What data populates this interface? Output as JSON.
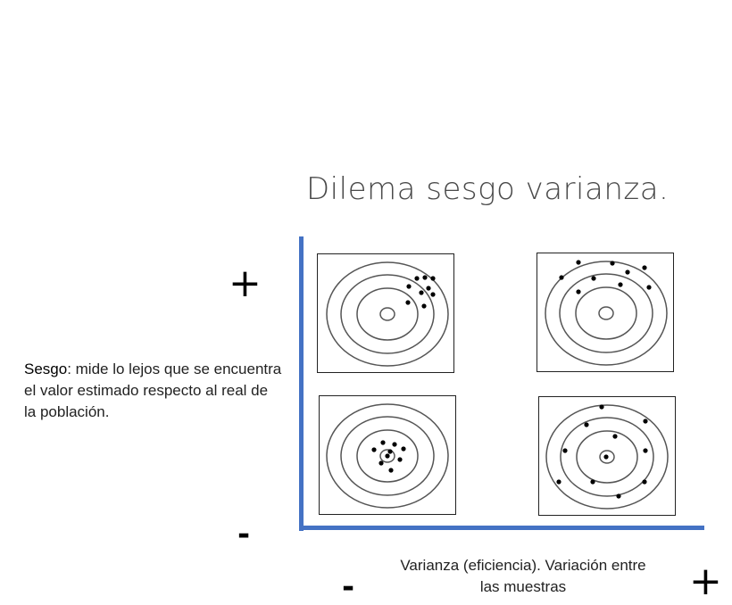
{
  "title": "Dilema sesgo varianza.",
  "description": {
    "term": "Sesgo",
    "text": ": mide lo lejos que se encuentra el valor estimado respecto al real de la población."
  },
  "x_axis_label": "Varianza (eficiencia). Variación entre las muestras",
  "signs": {
    "y_high": "+",
    "y_low": "-",
    "x_low": "-",
    "x_high": "+"
  },
  "colors": {
    "axis": "#4472c4",
    "rings": "#555555",
    "dots": "#000000",
    "title": "#4a4a4a"
  },
  "panels": [
    {
      "name": "high-bias-low-variance",
      "bias": "high",
      "variance": "low"
    },
    {
      "name": "high-bias-high-variance",
      "bias": "high",
      "variance": "high"
    },
    {
      "name": "low-bias-low-variance",
      "bias": "low",
      "variance": "low"
    },
    {
      "name": "low-bias-high-variance",
      "bias": "low",
      "variance": "high"
    }
  ]
}
